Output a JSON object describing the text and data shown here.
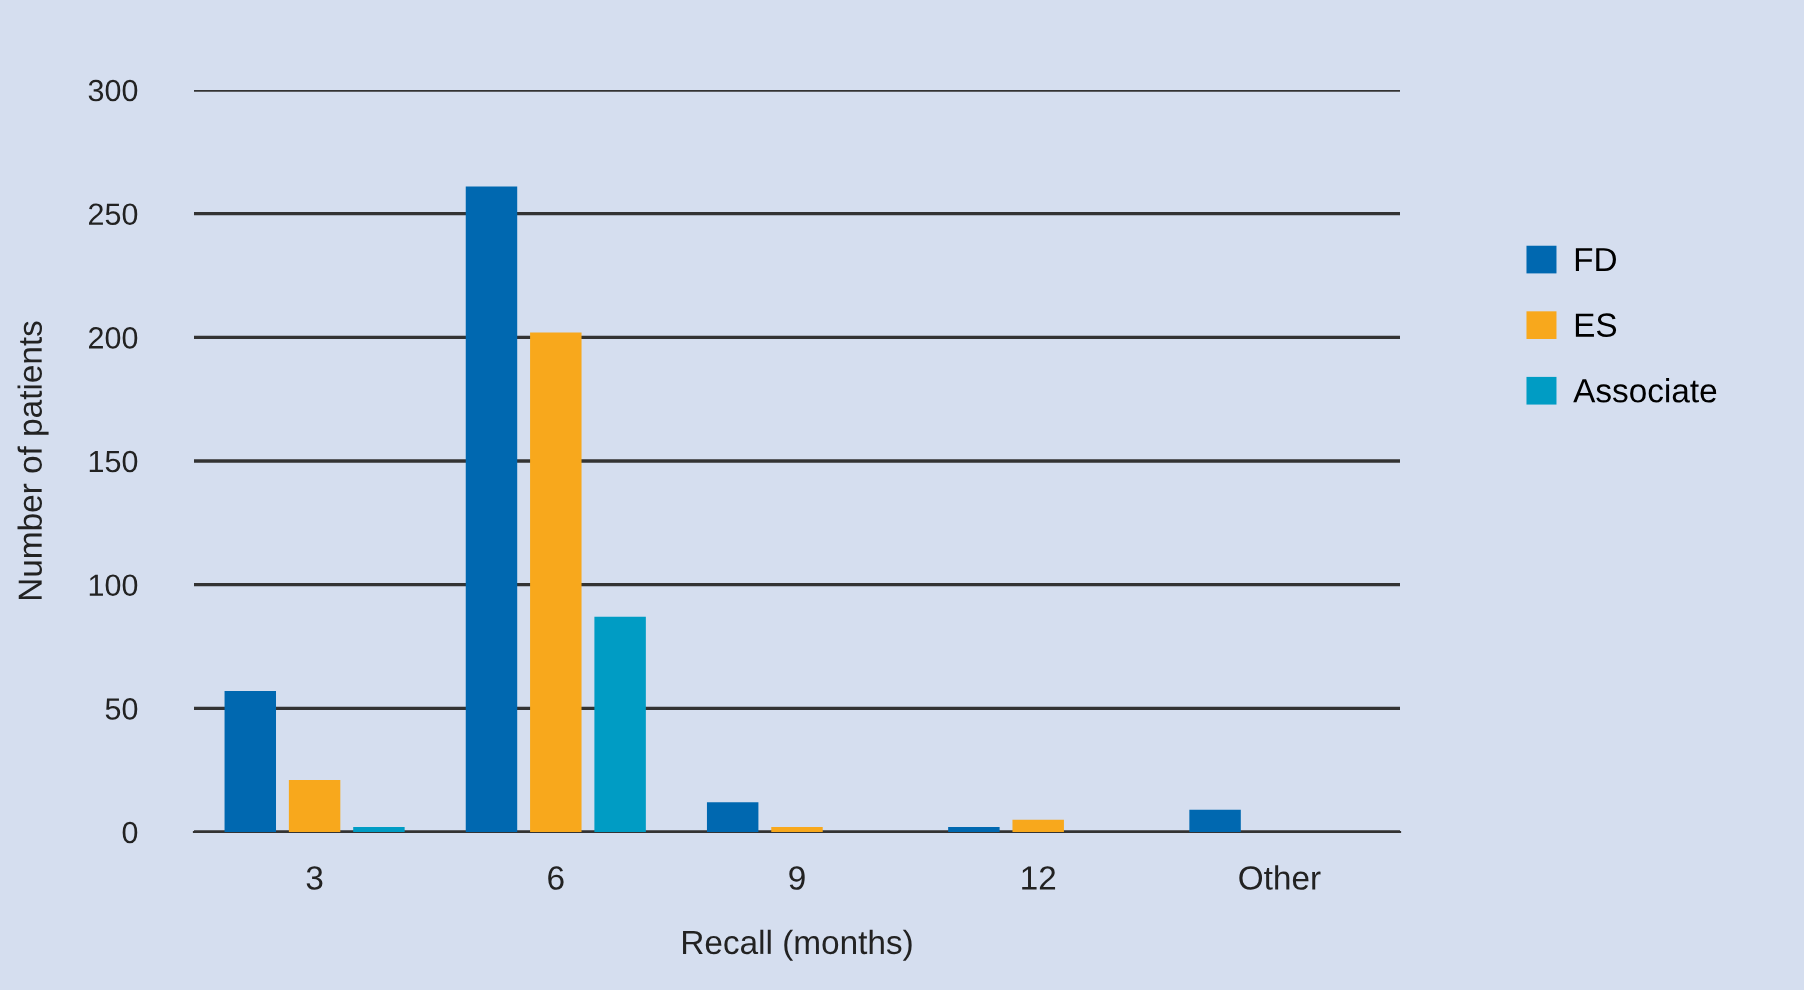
{
  "chart_data": {
    "type": "bar",
    "xlabel": "Recall (months)",
    "ylabel": "Number of patients",
    "categories": [
      "3",
      "6",
      "9",
      "12",
      "Other"
    ],
    "series": [
      {
        "name": "FD",
        "color": "#0068b0",
        "values": [
          57,
          261,
          12,
          2,
          9
        ]
      },
      {
        "name": "ES",
        "color": "#f8a81c",
        "values": [
          21,
          202,
          2,
          5,
          0
        ]
      },
      {
        "name": "Associate",
        "color": "#009cc4",
        "values": [
          2,
          87,
          0,
          0,
          0
        ]
      }
    ],
    "ylim": [
      0,
      300
    ],
    "yticks": [
      0,
      50,
      100,
      150,
      200,
      250,
      300
    ],
    "grid": "y",
    "legend": "right"
  }
}
